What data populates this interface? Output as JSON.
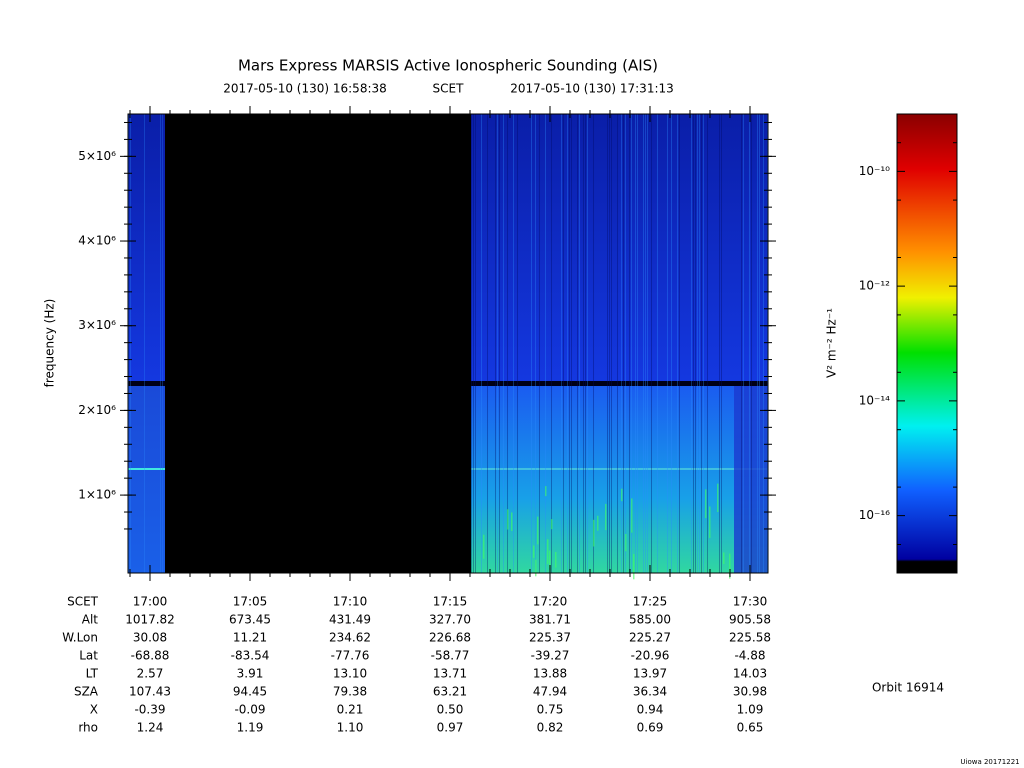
{
  "chart_data": {
    "type": "spectrogram",
    "title": "Mars Express MARSIS Active Ionospheric Sounding (AIS)",
    "start_time": "2017-05-10 (130) 16:58:38",
    "time_label": "SCET",
    "end_time": "2017-05-10 (130) 17:31:13",
    "ylabel": "frequency (Hz)",
    "ylim": [
      80000,
      5500000
    ],
    "yticks": [
      {
        "value": 1000000,
        "label": "1×10⁶"
      },
      {
        "value": 2000000,
        "label": "2×10⁶"
      },
      {
        "value": 3000000,
        "label": "3×10⁶"
      },
      {
        "value": 4000000,
        "label": "4×10⁶"
      },
      {
        "value": 5000000,
        "label": "5×10⁶"
      }
    ],
    "colorbar_label": "V² m⁻² Hz⁻¹",
    "clim": [
      1e-17,
      1e-09
    ],
    "log_scale": true,
    "cticks": [
      {
        "value": 1e-10,
        "label": "10⁻¹⁰"
      },
      {
        "value": 1e-12,
        "label": "10⁻¹²"
      },
      {
        "value": 1e-14,
        "label": "10⁻¹⁴"
      },
      {
        "value": 1e-16,
        "label": "10⁻¹⁶"
      }
    ],
    "orbit": "Orbit 16914",
    "credit": "Uiowa 20171221",
    "table": [
      {
        "label": "SCET",
        "values": [
          "17:00",
          "17:05",
          "17:10",
          "17:15",
          "17:20",
          "17:25",
          "17:30"
        ]
      },
      {
        "label": "Alt",
        "values": [
          "1017.82",
          "673.45",
          "431.49",
          "327.70",
          "381.71",
          "585.00",
          "905.58"
        ]
      },
      {
        "label": "W.Lon",
        "values": [
          "30.08",
          "11.21",
          "234.62",
          "226.68",
          "225.37",
          "225.27",
          "225.58"
        ]
      },
      {
        "label": "Lat",
        "values": [
          "-68.88",
          "-83.54",
          "-77.76",
          "-58.77",
          "-39.27",
          "-20.96",
          "-4.88"
        ]
      },
      {
        "label": "LT",
        "values": [
          "2.57",
          "3.91",
          "13.10",
          "13.71",
          "13.88",
          "13.97",
          "14.03"
        ]
      },
      {
        "label": "SZA",
        "values": [
          "107.43",
          "94.45",
          "79.38",
          "63.21",
          "47.94",
          "36.34",
          "30.98"
        ]
      },
      {
        "label": "X",
        "values": [
          "-0.39",
          "-0.09",
          "0.21",
          "0.50",
          "0.75",
          "0.94",
          "1.09"
        ]
      },
      {
        "label": "rho",
        "values": [
          "1.24",
          "1.19",
          "1.10",
          "0.97",
          "0.82",
          "0.69",
          "0.65"
        ]
      }
    ]
  }
}
